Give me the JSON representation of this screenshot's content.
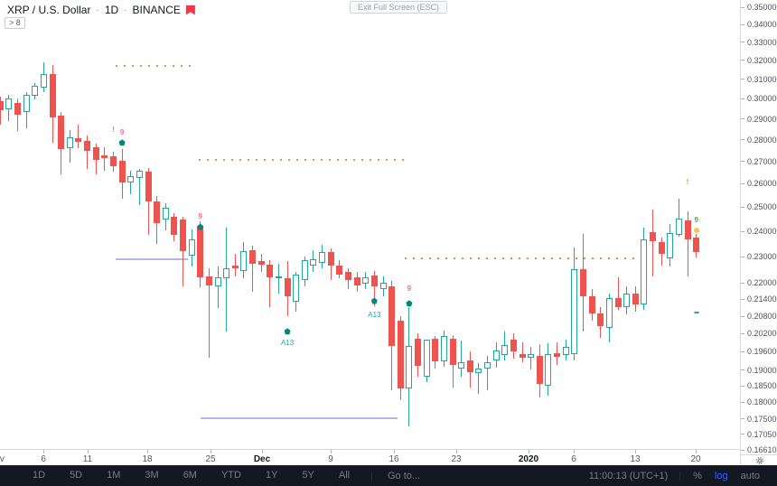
{
  "header": {
    "symbol": "XRP / U.S. Dollar",
    "separator": "·",
    "interval": "1D",
    "exchange": "BINANCE"
  },
  "objects_chip": {
    "label": "> 8"
  },
  "tooltip": {
    "label": "Exit Full Screen (ESC)"
  },
  "toolbar": {
    "ranges": [
      "1D",
      "5D",
      "1M",
      "3M",
      "6M",
      "YTD",
      "1Y",
      "5Y",
      "All"
    ],
    "goto_label": "Go to...",
    "clock": "11:00:13 (UTC+1)",
    "percent_label": "%",
    "log_label": "log",
    "auto_label": "auto",
    "active_scale": "log",
    "accent": "#2962ff"
  },
  "price_axis": {
    "labels": [
      {
        "text": "0.35000000",
        "value": 0.35
      },
      {
        "text": "0.34000000",
        "value": 0.34
      },
      {
        "text": "0.33000000",
        "value": 0.33
      },
      {
        "text": "0.32000000",
        "value": 0.32
      },
      {
        "text": "0.31000000",
        "value": 0.31
      },
      {
        "text": "0.30000000",
        "value": 0.3
      },
      {
        "text": "0.29000000",
        "value": 0.29
      },
      {
        "text": "0.28000000",
        "value": 0.28
      },
      {
        "text": "0.27000000",
        "value": 0.27
      },
      {
        "text": "0.26000000",
        "value": 0.26
      },
      {
        "text": "0.25000000",
        "value": 0.25
      },
      {
        "text": "0.24000000",
        "value": 0.24
      },
      {
        "text": "0.23000000",
        "value": 0.23
      },
      {
        "text": "0.22000000",
        "value": 0.22
      },
      {
        "text": "0.21400000",
        "value": 0.214
      },
      {
        "text": "0.20800000",
        "value": 0.208
      },
      {
        "text": "0.20200000",
        "value": 0.202
      },
      {
        "text": "0.19600000",
        "value": 0.196
      },
      {
        "text": "0.19000000",
        "value": 0.19
      },
      {
        "text": "0.18500000",
        "value": 0.185
      },
      {
        "text": "0.18000000",
        "value": 0.18
      },
      {
        "text": "0.17500000",
        "value": 0.175
      },
      {
        "text": "0.17050000",
        "value": 0.1705
      },
      {
        "text": "0.16610000",
        "value": 0.1661
      }
    ]
  },
  "time_axis": {
    "ticks": [
      {
        "label": "Nov",
        "x": -4,
        "emphasis": false
      },
      {
        "label": "6",
        "x": 48,
        "emphasis": false
      },
      {
        "label": "11",
        "x": 97,
        "emphasis": false
      },
      {
        "label": "18",
        "x": 163,
        "emphasis": false
      },
      {
        "label": "25",
        "x": 233,
        "emphasis": false
      },
      {
        "label": "Dec",
        "x": 290,
        "emphasis": true
      },
      {
        "label": "9",
        "x": 366,
        "emphasis": false
      },
      {
        "label": "16",
        "x": 436,
        "emphasis": false
      },
      {
        "label": "23",
        "x": 505,
        "emphasis": false
      },
      {
        "label": "2020",
        "x": 585,
        "emphasis": true
      },
      {
        "label": "6",
        "x": 635,
        "emphasis": false
      },
      {
        "label": "13",
        "x": 703,
        "emphasis": false
      },
      {
        "label": "20",
        "x": 770,
        "emphasis": false
      }
    ]
  },
  "chart_data": {
    "type": "candlestick",
    "title": "XRP / U.S. Dollar 1D BINANCE",
    "scale": "log",
    "ylim": [
      0.1661,
      0.35
    ],
    "colors": {
      "up": "#26a69a",
      "down": "#ef5350"
    },
    "axis": {
      "p_top": 0.35,
      "y_top": 8,
      "p_bottom": 0.1661,
      "y_bottom": 498
    },
    "layout": {
      "x0": -0.2,
      "step": 9.63,
      "body_width": 7
    },
    "candle_format": [
      "date",
      "open",
      "high",
      "low",
      "close"
    ],
    "candles": [
      [
        "2019-11-01",
        0.299,
        0.3012,
        0.287,
        0.2942
      ],
      [
        "2019-11-02",
        0.2945,
        0.302,
        0.289,
        0.3
      ],
      [
        "2019-11-03",
        0.2978,
        0.3,
        0.284,
        0.2922
      ],
      [
        "2019-11-04",
        0.2935,
        0.3032,
        0.2855,
        0.3018
      ],
      [
        "2019-11-05",
        0.3015,
        0.3082,
        0.2995,
        0.3068
      ],
      [
        "2019-11-06",
        0.3058,
        0.3188,
        0.3035,
        0.3128
      ],
      [
        "2019-11-07",
        0.3128,
        0.3175,
        0.2785,
        0.2906
      ],
      [
        "2019-11-08",
        0.2915,
        0.2932,
        0.264,
        0.2757
      ],
      [
        "2019-11-09",
        0.276,
        0.2845,
        0.2695,
        0.2812
      ],
      [
        "2019-11-10",
        0.2806,
        0.2872,
        0.2762,
        0.279
      ],
      [
        "2019-11-11",
        0.2795,
        0.2818,
        0.2665,
        0.2746
      ],
      [
        "2019-11-12",
        0.2766,
        0.2782,
        0.2642,
        0.2706
      ],
      [
        "2019-11-13",
        0.2726,
        0.2766,
        0.2656,
        0.2716
      ],
      [
        "2019-11-14",
        0.2725,
        0.2746,
        0.2654,
        0.2676
      ],
      [
        "2019-11-15",
        0.2702,
        0.2756,
        0.2535,
        0.2606
      ],
      [
        "2019-11-16",
        0.2606,
        0.2657,
        0.2556,
        0.2634
      ],
      [
        "2019-11-17",
        0.2626,
        0.2666,
        0.251,
        0.2656
      ],
      [
        "2019-11-18",
        0.2652,
        0.2668,
        0.2386,
        0.2524
      ],
      [
        "2019-11-19",
        0.2524,
        0.2548,
        0.235,
        0.2433
      ],
      [
        "2019-11-20",
        0.2448,
        0.2516,
        0.2405,
        0.2497
      ],
      [
        "2019-11-21",
        0.246,
        0.2473,
        0.236,
        0.2386
      ],
      [
        "2019-11-22",
        0.2448,
        0.2458,
        0.2187,
        0.2321
      ],
      [
        "2019-11-23",
        0.2303,
        0.2406,
        0.2262,
        0.2368
      ],
      [
        "2019-11-24",
        0.2422,
        0.2442,
        0.2184,
        0.222
      ],
      [
        "2019-11-25",
        0.2226,
        0.2256,
        0.194,
        0.2192
      ],
      [
        "2019-11-26",
        0.2188,
        0.2262,
        0.2109,
        0.2221
      ],
      [
        "2019-11-27",
        0.2216,
        0.2415,
        0.2028,
        0.2256
      ],
      [
        "2019-11-28",
        0.2266,
        0.2312,
        0.2226,
        0.2256
      ],
      [
        "2019-11-29",
        0.2246,
        0.2356,
        0.2216,
        0.2321
      ],
      [
        "2019-11-30",
        0.2326,
        0.2341,
        0.2166,
        0.2271
      ],
      [
        "2019-12-01",
        0.2281,
        0.2312,
        0.2241,
        0.2268
      ],
      [
        "2019-12-02",
        0.227,
        0.2286,
        0.2112,
        0.2221
      ],
      [
        "2019-12-03",
        0.2216,
        0.2271,
        0.2161,
        0.2226
      ],
      [
        "2019-12-04",
        0.2216,
        0.2281,
        0.2081,
        0.2151
      ],
      [
        "2019-12-05",
        0.2131,
        0.2241,
        0.2096,
        0.2231
      ],
      [
        "2019-12-06",
        0.2211,
        0.2301,
        0.2186,
        0.2286
      ],
      [
        "2019-12-07",
        0.2266,
        0.2326,
        0.2241,
        0.2291
      ],
      [
        "2019-12-08",
        0.2276,
        0.2346,
        0.2256,
        0.2318
      ],
      [
        "2019-12-09",
        0.2318,
        0.2331,
        0.2211,
        0.2266
      ],
      [
        "2019-12-10",
        0.2266,
        0.2286,
        0.2216,
        0.2231
      ],
      [
        "2019-12-11",
        0.2241,
        0.2256,
        0.2176,
        0.2212
      ],
      [
        "2019-12-12",
        0.2222,
        0.2241,
        0.2166,
        0.2191
      ],
      [
        "2019-12-13",
        0.2196,
        0.2241,
        0.2176,
        0.2222
      ],
      [
        "2019-12-14",
        0.2228,
        0.2246,
        0.2116,
        0.2186
      ],
      [
        "2019-12-15",
        0.2176,
        0.2226,
        0.2151,
        0.2201
      ],
      [
        "2019-12-16",
        0.2186,
        0.2206,
        0.1836,
        0.1978
      ],
      [
        "2019-12-17",
        0.2066,
        0.2081,
        0.1806,
        0.1843
      ],
      [
        "2019-12-18",
        0.1843,
        0.2111,
        0.1728,
        0.1978
      ],
      [
        "2019-12-19",
        0.2003,
        0.2021,
        0.1878,
        0.1913
      ],
      [
        "2019-12-20",
        0.1879,
        0.2001,
        0.1861,
        0.1999
      ],
      [
        "2019-12-21",
        0.2003,
        0.2011,
        0.1905,
        0.1928
      ],
      [
        "2019-12-22",
        0.1928,
        0.2031,
        0.1911,
        0.2012
      ],
      [
        "2019-12-23",
        0.2003,
        0.2016,
        0.1846,
        0.1916
      ],
      [
        "2019-12-24",
        0.1906,
        0.1996,
        0.1878,
        0.1926
      ],
      [
        "2019-12-25",
        0.1932,
        0.1961,
        0.1846,
        0.1893
      ],
      [
        "2019-12-26",
        0.1891,
        0.1921,
        0.1824,
        0.1906
      ],
      [
        "2019-12-27",
        0.1906,
        0.1946,
        0.1836,
        0.1924
      ],
      [
        "2019-12-28",
        0.1932,
        0.1992,
        0.1908,
        0.1963
      ],
      [
        "2019-12-29",
        0.1948,
        0.2028,
        0.1932,
        0.1981
      ],
      [
        "2019-12-30",
        0.1999,
        0.2021,
        0.1938,
        0.1961
      ],
      [
        "2019-12-31",
        0.1953,
        0.1991,
        0.1926,
        0.1941
      ],
      [
        "2020-01-01",
        0.1941,
        0.1976,
        0.1902,
        0.1951
      ],
      [
        "2020-01-02",
        0.1946,
        0.1986,
        0.1813,
        0.1856
      ],
      [
        "2020-01-03",
        0.1851,
        0.1988,
        0.1821,
        0.1952
      ],
      [
        "2020-01-04",
        0.1956,
        0.1991,
        0.1916,
        0.1942
      ],
      [
        "2020-01-05",
        0.1948,
        0.2001,
        0.1931,
        0.1976
      ],
      [
        "2020-01-06",
        0.1951,
        0.2336,
        0.1931,
        0.2251
      ],
      [
        "2020-01-07",
        0.2251,
        0.2391,
        0.2026,
        0.2151
      ],
      [
        "2020-01-08",
        0.2151,
        0.2176,
        0.2066,
        0.2089
      ],
      [
        "2020-01-09",
        0.2089,
        0.2111,
        0.2006,
        0.2046
      ],
      [
        "2020-01-10",
        0.2041,
        0.2161,
        0.1991,
        0.2143
      ],
      [
        "2020-01-11",
        0.2144,
        0.2221,
        0.2101,
        0.2112
      ],
      [
        "2020-01-12",
        0.2112,
        0.2186,
        0.2086,
        0.2162
      ],
      [
        "2020-01-13",
        0.2162,
        0.2186,
        0.2096,
        0.2121
      ],
      [
        "2020-01-14",
        0.2121,
        0.2416,
        0.2101,
        0.2368
      ],
      [
        "2020-01-15",
        0.2396,
        0.2491,
        0.2226,
        0.2361
      ],
      [
        "2020-01-16",
        0.2358,
        0.2376,
        0.2266,
        0.2311
      ],
      [
        "2020-01-17",
        0.2292,
        0.2431,
        0.2262,
        0.2392
      ],
      [
        "2020-01-18",
        0.2386,
        0.2536,
        0.238,
        0.2453
      ],
      [
        "2020-01-19",
        0.2446,
        0.2481,
        0.2226,
        0.2368
      ],
      [
        "2020-01-20",
        0.2376,
        0.2391,
        0.2296,
        0.2317
      ]
    ],
    "lines": [
      {
        "style": "dotted",
        "price": 0.3171,
        "x1": 128,
        "x2": 217,
        "color": "#dd9350"
      },
      {
        "style": "dotted",
        "price": 0.2706,
        "x1": 220,
        "x2": 447,
        "color": "#dd9350"
      },
      {
        "style": "dotted",
        "price": 0.2294,
        "x1": 448,
        "x2": 703,
        "color": "#d98e4a"
      },
      {
        "style": "solid",
        "price": 0.2289,
        "x1": 128,
        "x2": 208,
        "color": "#b3b5e6"
      },
      {
        "style": "solid",
        "price": 0.1752,
        "x1": 222,
        "x2": 440,
        "color": "#b3b5e6"
      }
    ],
    "markers": [
      {
        "i": 13,
        "p": 0.2846,
        "type": "text",
        "text": "!",
        "color": "#c7a317",
        "name": "exclamation-marker"
      },
      {
        "i": 14,
        "p": 0.2834,
        "type": "text",
        "text": "9",
        "color": "#ec6ea5",
        "name": "nine-marker"
      },
      {
        "i": 14,
        "p": 0.2787,
        "type": "pentagon",
        "color": "#00897b",
        "name": "pentagon-marker"
      },
      {
        "i": 23,
        "p": 0.246,
        "type": "text",
        "text": "9",
        "color": "#ec6ea5",
        "name": "nine-marker"
      },
      {
        "i": 23,
        "p": 0.2418,
        "type": "pentagon",
        "color": "#00897b",
        "name": "pentagon-marker"
      },
      {
        "i": 33,
        "p": 0.2028,
        "type": "pentagon",
        "color": "#00897b",
        "name": "pentagon-marker"
      },
      {
        "i": 33,
        "p": 0.1988,
        "type": "label",
        "text": "A13",
        "color": "#26a69a",
        "name": "a13-label"
      },
      {
        "i": 43,
        "p": 0.2135,
        "type": "pentagon",
        "color": "#00897b",
        "name": "pentagon-marker"
      },
      {
        "i": 43,
        "p": 0.2085,
        "type": "label",
        "text": "A13",
        "color": "#26a69a",
        "name": "a13-label"
      },
      {
        "i": 47,
        "p": 0.2177,
        "type": "text",
        "text": "9",
        "color": "#ec6ea5",
        "name": "nine-marker"
      },
      {
        "i": 47,
        "p": 0.2126,
        "type": "pentagon",
        "color": "#00897b",
        "name": "pentagon-marker"
      },
      {
        "i": 79,
        "p": 0.2606,
        "type": "text",
        "text": "!",
        "color": "#c7a317",
        "name": "exclamation-marker"
      },
      {
        "i": 80,
        "p": 0.2444,
        "type": "text",
        "text": "9",
        "color": "#4caf50",
        "name": "nine-marker"
      },
      {
        "i": 80,
        "p": 0.2405,
        "type": "dot",
        "color": "#f0c84b",
        "name": "dot-marker"
      },
      {
        "i": 80,
        "p": 0.2093,
        "type": "dash",
        "color": "#26a69a",
        "name": "dash-marker"
      }
    ]
  }
}
